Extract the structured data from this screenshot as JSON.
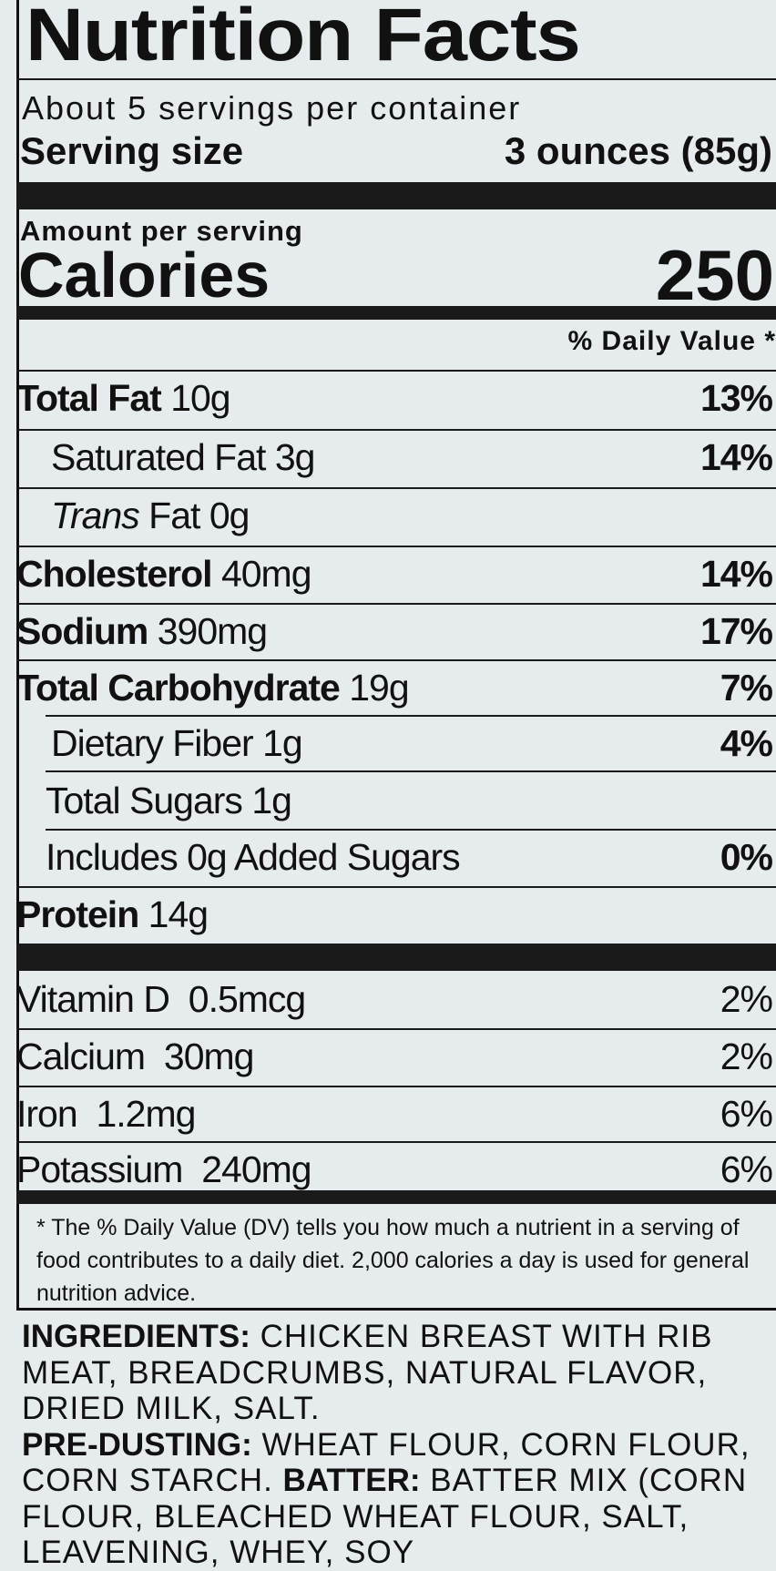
{
  "title": "Nutrition Facts",
  "servings_per_container": "About 5 servings per container",
  "serving_size_label": "Serving size",
  "serving_size_value": "3 ounces (85g)",
  "amount_per_serving": "Amount per serving",
  "calories_label": "Calories",
  "calories_value": "250",
  "daily_value_header": "% Daily Value *",
  "nutrients": [
    {
      "name": "Total Fat",
      "amount": "10g",
      "dv": "13%"
    },
    {
      "name": "Saturated Fat",
      "amount": "3g",
      "dv": "14%"
    },
    {
      "name": "Trans",
      "name2": "Fat",
      "amount": "0g",
      "dv": ""
    },
    {
      "name": "Cholesterol",
      "amount": "40mg",
      "dv": "14%"
    },
    {
      "name": "Sodium",
      "amount": "390mg",
      "dv": "17%"
    },
    {
      "name": "Total Carbohydrate",
      "amount": "19g",
      "dv": "7%"
    },
    {
      "name": "Dietary Fiber",
      "amount": "1g",
      "dv": "4%"
    },
    {
      "name": "Total Sugars",
      "amount": "1g",
      "dv": ""
    },
    {
      "name": "Includes 0g Added Sugars",
      "amount": "",
      "dv": "0%"
    },
    {
      "name": "Protein",
      "amount": "14g",
      "dv": ""
    }
  ],
  "vitamins": [
    {
      "name": "Vitamin D",
      "amount": "0.5mcg",
      "dv": "2%"
    },
    {
      "name": "Calcium",
      "amount": "30mg",
      "dv": "2%"
    },
    {
      "name": "Iron",
      "amount": "1.2mg",
      "dv": "6%"
    },
    {
      "name": "Potassium",
      "amount": "240mg",
      "dv": "6%"
    }
  ],
  "footnote": "* The % Daily Value (DV) tells you how much a nutrient in a serving of food contributes to a daily diet. 2,000 calories a day is used for general nutrition advice.",
  "ingredients": {
    "label1": "INGREDIENTS:",
    "text1": " CHICKEN BREAST WITH RIB MEAT, BREADCRUMBS, NATURAL FLAVOR, DRIED MILK, SALT.",
    "label2": "PRE-DUSTING:",
    "text2": " WHEAT FLOUR, CORN FLOUR, CORN STARCH. ",
    "label3": "BATTER:",
    "text3": " BATTER MIX (CORN FLOUR, BLEACHED WHEAT FLOUR, SALT, LEAVENING, WHEY, SOY"
  }
}
